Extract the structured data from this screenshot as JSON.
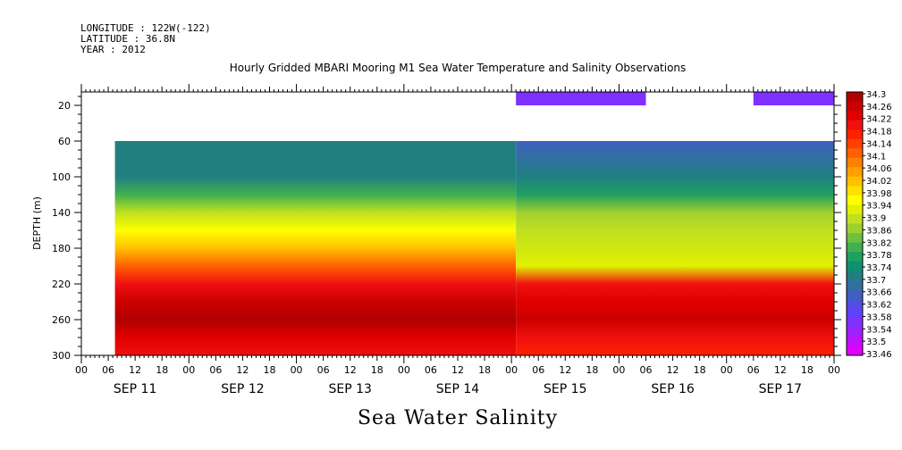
{
  "header": {
    "longitude_text": "LONGITUDE : 122W(-122)",
    "latitude_text": "LATITUDE : 36.8N",
    "year_text": "YEAR : 2012"
  },
  "chart_data": {
    "type": "heatmap",
    "title": "Hourly Gridded MBARI Mooring M1 Sea Water Temperature and Salinity Observations",
    "ylabel": "DEPTH (m)",
    "variable_name": "Sea Water Salinity",
    "x_range_hours": [
      0,
      168
    ],
    "y_range_depth_m": [
      5,
      300
    ],
    "y_inverted": true,
    "y_ticks": [
      20,
      60,
      100,
      140,
      180,
      220,
      260,
      300
    ],
    "x_tick_labels": [
      "00",
      "06",
      "12",
      "18",
      "00",
      "06",
      "12",
      "18",
      "00",
      "06",
      "12",
      "18",
      "00",
      "06",
      "12",
      "18",
      "00",
      "06",
      "12",
      "18",
      "00",
      "06",
      "12",
      "18",
      "00",
      "06",
      "12",
      "18",
      "00"
    ],
    "x_tick_hours": [
      0,
      6,
      12,
      18,
      24,
      30,
      36,
      42,
      48,
      54,
      60,
      66,
      72,
      78,
      84,
      90,
      96,
      102,
      108,
      114,
      120,
      126,
      132,
      138,
      144,
      150,
      156,
      162,
      168
    ],
    "day_labels": [
      "SEP 11",
      "SEP 12",
      "SEP 13",
      "SEP 14",
      "SEP 15",
      "SEP 16",
      "SEP 17"
    ],
    "day_label_hours": [
      12,
      36,
      60,
      84,
      108,
      132,
      156
    ],
    "colorbar": {
      "labels": [
        "34.3",
        "34.26",
        "34.22",
        "34.18",
        "34.14",
        "34.1",
        "34.06",
        "34.02",
        "33.98",
        "33.94",
        "33.9",
        "33.86",
        "33.82",
        "33.78",
        "33.74",
        "33.7",
        "33.66",
        "33.62",
        "33.58",
        "33.54",
        "33.5",
        "33.46"
      ],
      "colors": [
        "#b00000",
        "#cc0000",
        "#e00000",
        "#f01010",
        "#ff2000",
        "#ff4000",
        "#ff6000",
        "#ff8000",
        "#ffa000",
        "#ffc000",
        "#ffe000",
        "#ffff00",
        "#e0f000",
        "#c0e020",
        "#a0d030",
        "#70c040",
        "#40b050",
        "#20a060",
        "#109070",
        "#208080",
        "#3070a0",
        "#4060c0",
        "#5050e0",
        "#6040ff",
        "#8030ff",
        "#a020ff",
        "#c010ff",
        "#e000ff"
      ]
    },
    "regions": [
      {
        "name": "surface-band-a",
        "x_hours": [
          97,
          126
        ],
        "depth_m": [
          5,
          20
        ],
        "value": 33.58
      },
      {
        "name": "surface-band-b",
        "x_hours": [
          150,
          168
        ],
        "depth_m": [
          5,
          20
        ],
        "value": 33.58
      },
      {
        "name": "main-field-west",
        "x_hours": [
          7.5,
          97
        ],
        "depth_m": [
          60,
          300
        ],
        "profile": [
          [
            60,
            33.7
          ],
          [
            100,
            33.72
          ],
          [
            120,
            33.8
          ],
          [
            140,
            33.88
          ],
          [
            160,
            33.95
          ],
          [
            180,
            34.02
          ],
          [
            200,
            34.1
          ],
          [
            220,
            34.2
          ],
          [
            240,
            34.24
          ],
          [
            260,
            34.27
          ],
          [
            280,
            34.22
          ],
          [
            300,
            34.18
          ]
        ]
      },
      {
        "name": "main-field-east",
        "x_hours": [
          97,
          168
        ],
        "depth_m": [
          60,
          300
        ],
        "profile": [
          [
            60,
            33.64
          ],
          [
            100,
            33.7
          ],
          [
            120,
            33.78
          ],
          [
            140,
            33.86
          ],
          [
            160,
            33.9
          ],
          [
            200,
            33.94
          ],
          [
            220,
            34.2
          ],
          [
            240,
            34.22
          ],
          [
            260,
            34.26
          ],
          [
            280,
            34.2
          ],
          [
            300,
            34.16
          ]
        ]
      }
    ]
  }
}
